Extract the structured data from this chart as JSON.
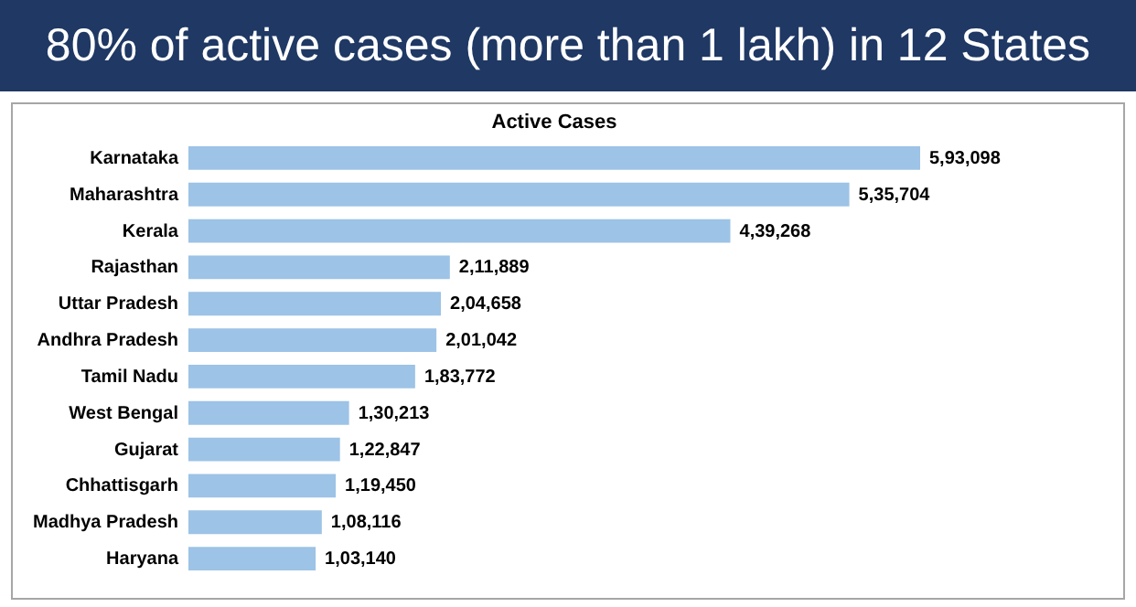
{
  "chart_data": {
    "type": "bar",
    "orientation": "horizontal",
    "title": "80% of active cases (more than 1 lakh) in 12 States",
    "subtitle": "Active Cases",
    "categories": [
      "Karnataka",
      "Maharashtra",
      "Kerala",
      "Rajasthan",
      "Uttar Pradesh",
      "Andhra Pradesh",
      "Tamil Nadu",
      "West Bengal",
      "Gujarat",
      "Chhattisgarh",
      "Madhya Pradesh",
      "Haryana"
    ],
    "values": [
      593098,
      535704,
      439268,
      211889,
      204658,
      201042,
      183772,
      130213,
      122847,
      119450,
      108116,
      103140
    ],
    "value_labels": [
      "5,93,098",
      "5,35,704",
      "4,39,268",
      "2,11,889",
      "2,04,658",
      "2,01,042",
      "1,83,772",
      "1,30,213",
      "1,22,847",
      "1,19,450",
      "1,08,116",
      "1,03,140"
    ],
    "color": "#9dc3e6"
  }
}
